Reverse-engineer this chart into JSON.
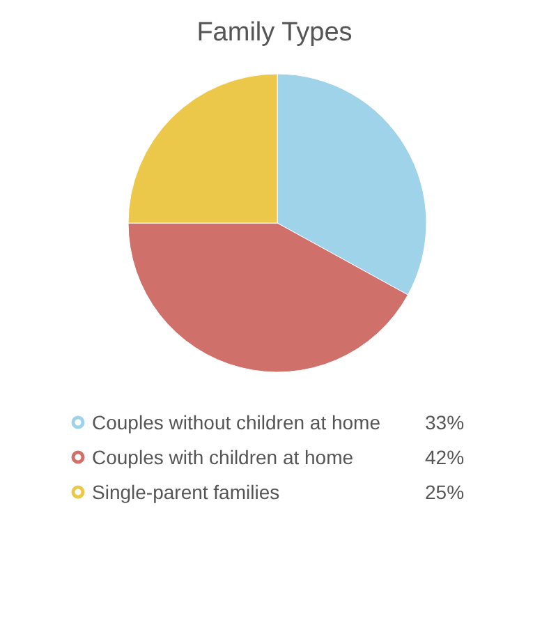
{
  "chart_data": {
    "type": "pie",
    "title": "Family Types",
    "categories": [
      "Couples without children at home",
      "Couples with children at home",
      "Single-parent families"
    ],
    "values": [
      33,
      42,
      25
    ],
    "colors": [
      "#9fd3ea",
      "#d0706a",
      "#ecc84a"
    ],
    "value_labels": [
      "33%",
      "42%",
      "25%"
    ],
    "legend": "bottom"
  }
}
